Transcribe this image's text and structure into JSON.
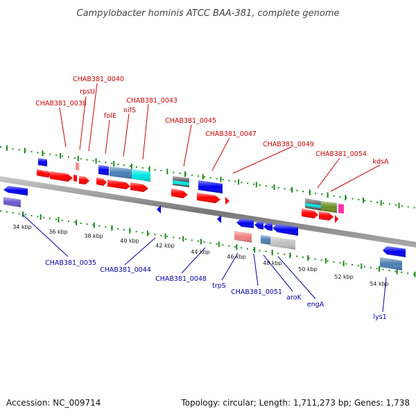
{
  "title": "Campylobacter hominis ATCC BAA-381, complete genome",
  "footer": {
    "accession": "Accession: NC_009714",
    "summary": "Topology: circular; Length: 1,711,273 bp; Genes: 1,738"
  },
  "scale_labels": [
    "34 kbp",
    "36 kbp",
    "38 kbp",
    "40 kbp",
    "42 kbp",
    "44 kbp",
    "46 kbp",
    "48 kbp",
    "50 kbp",
    "52 kbp",
    "54 kbp"
  ],
  "forward_labels": [
    "CHAB381_0040",
    "rpsU",
    "CHAB381_0038",
    "folE",
    "nifS",
    "CHAB381_0043",
    "CHAB381_0045",
    "CHAB381_0047",
    "CHAB381_0049",
    "CHAB381_0054",
    "kdsA"
  ],
  "reverse_labels": [
    "CHAB381_0035",
    "CHAB381_0044",
    "CHAB381_0048",
    "trpS",
    "CHAB381_0051",
    "aroK",
    "engA",
    "lys1"
  ],
  "colors": {
    "forward_gene": "#ff0000",
    "reverse_gene": "#0000ff",
    "forward_label": "#cc0000",
    "reverse_label": "#0000aa",
    "backbone": "#888888",
    "dotted_track": "#1a8a1a"
  }
}
